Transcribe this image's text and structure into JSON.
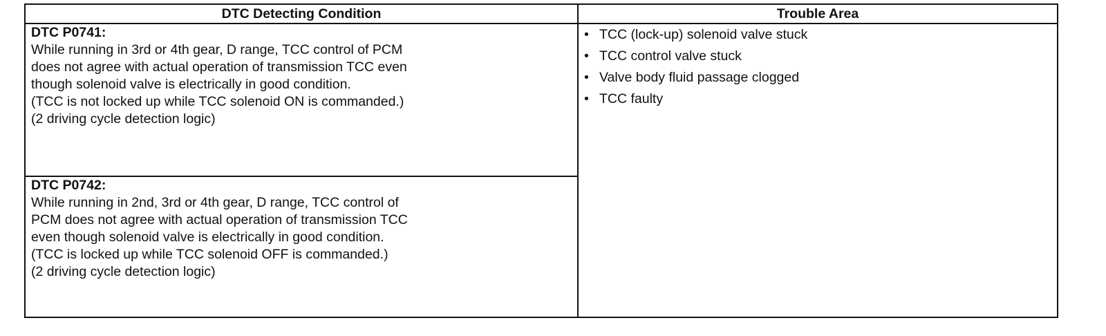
{
  "table": {
    "headers": [
      "DTC Detecting Condition",
      "Trouble Area"
    ],
    "conditions": [
      {
        "code": "DTC P0741:",
        "lines": [
          "While running in 3rd or 4th gear, D range, TCC control of PCM",
          "does not agree with actual operation of transmission TCC even",
          "though solenoid valve is electrically in good condition.",
          "(TCC is not locked up while TCC solenoid ON is commanded.)",
          "(2 driving cycle detection logic)"
        ]
      },
      {
        "code": "DTC P0742:",
        "lines": [
          "While running in 2nd, 3rd or 4th gear, D range, TCC control of",
          "PCM does not agree with actual operation of transmission TCC",
          "even though solenoid valve is electrically in good condition.",
          "(TCC is locked up while TCC solenoid OFF is commanded.)",
          "(2 driving cycle detection logic)"
        ]
      }
    ],
    "trouble_areas": [
      "TCC (lock-up) solenoid valve stuck",
      "TCC control valve stuck",
      "Valve body fluid passage clogged",
      "TCC faulty"
    ],
    "bullet": "•"
  }
}
